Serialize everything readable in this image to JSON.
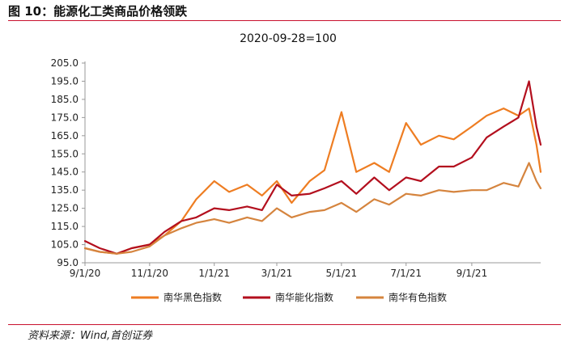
{
  "figure": {
    "caption": "图 10：能源化工类商品价格领跌",
    "source": "资料来源：Wind,首创证券"
  },
  "chart_data": {
    "type": "line",
    "title": "2020-09-28=100",
    "xlabel": "",
    "ylabel": "",
    "x": [
      "9/1/20",
      "9/15/20",
      "10/1/20",
      "10/15/20",
      "11/1/20",
      "11/15/20",
      "12/1/20",
      "12/15/20",
      "1/1/21",
      "1/15/21",
      "2/1/21",
      "2/15/21",
      "3/1/21",
      "3/15/21",
      "4/1/21",
      "4/15/21",
      "5/1/21",
      "5/15/21",
      "6/1/21",
      "6/15/21",
      "7/1/21",
      "7/15/21",
      "8/1/21",
      "8/15/21",
      "9/1/21",
      "9/15/21",
      "10/1/21",
      "10/15/21",
      "10/25/21",
      "11/1/21",
      "11/5/21"
    ],
    "x_ticks": [
      "9/1/20",
      "11/1/20",
      "1/1/21",
      "3/1/21",
      "5/1/21",
      "7/1/21",
      "9/1/21"
    ],
    "y_ticks": [
      "95.0",
      "105.0",
      "115.0",
      "125.0",
      "135.0",
      "145.0",
      "155.0",
      "165.0",
      "175.0",
      "185.0",
      "195.0",
      "205.0"
    ],
    "ylim": [
      95,
      205
    ],
    "grid": false,
    "legend_position": "bottom",
    "series": [
      {
        "name": "南华黑色指数",
        "color": "#ee7d22",
        "values": [
          103,
          101,
          100,
          103,
          105,
          110,
          118,
          130,
          140,
          134,
          138,
          132,
          140,
          128,
          140,
          146,
          178,
          145,
          150,
          145,
          172,
          160,
          165,
          163,
          170,
          176,
          180,
          176,
          180,
          160,
          145
        ]
      },
      {
        "name": "南华能化指数",
        "color": "#b30f1e",
        "values": [
          107,
          103,
          100,
          103,
          105,
          112,
          118,
          120,
          125,
          124,
          126,
          124,
          138,
          132,
          133,
          136,
          140,
          133,
          142,
          135,
          142,
          140,
          148,
          148,
          153,
          164,
          170,
          175,
          195,
          170,
          160
        ]
      },
      {
        "name": "南华有色指数",
        "color": "#d5843e",
        "values": [
          103,
          101,
          100,
          101,
          104,
          110,
          114,
          117,
          119,
          117,
          120,
          118,
          125,
          120,
          123,
          124,
          128,
          123,
          130,
          127,
          133,
          132,
          135,
          134,
          135,
          135,
          139,
          137,
          150,
          140,
          136
        ]
      }
    ]
  }
}
